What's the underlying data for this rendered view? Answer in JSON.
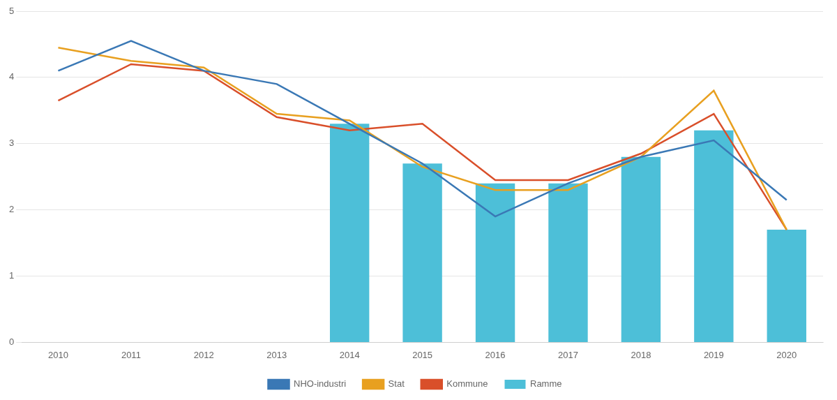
{
  "chart_data": {
    "type": "bar",
    "categories": [
      "2010",
      "2011",
      "2012",
      "2013",
      "2014",
      "2015",
      "2016",
      "2017",
      "2018",
      "2019",
      "2020"
    ],
    "series": [
      {
        "name": "Ramme",
        "type": "bar",
        "color": "#4DBFD8",
        "values": [
          null,
          null,
          null,
          null,
          3.3,
          2.7,
          2.4,
          2.4,
          2.8,
          3.2,
          1.7
        ]
      },
      {
        "name": "NHO-industri",
        "type": "line",
        "color": "#3A78B5",
        "values": [
          4.1,
          4.55,
          4.1,
          3.9,
          3.3,
          2.7,
          1.9,
          2.4,
          2.8,
          3.05,
          2.15
        ]
      },
      {
        "name": "Stat",
        "type": "line",
        "color": "#E8A020",
        "values": [
          4.45,
          4.25,
          4.15,
          3.45,
          3.35,
          2.65,
          2.3,
          2.3,
          2.8,
          3.8,
          1.7
        ]
      },
      {
        "name": "Kommune",
        "type": "line",
        "color": "#D94F2A",
        "values": [
          3.65,
          4.2,
          4.1,
          3.4,
          3.2,
          3.3,
          2.45,
          2.45,
          2.85,
          3.45,
          1.7
        ]
      }
    ],
    "ylim": [
      0,
      5
    ],
    "yticks": [
      0,
      1,
      2,
      3,
      4,
      5
    ],
    "grid": true,
    "legend": "bottom"
  }
}
